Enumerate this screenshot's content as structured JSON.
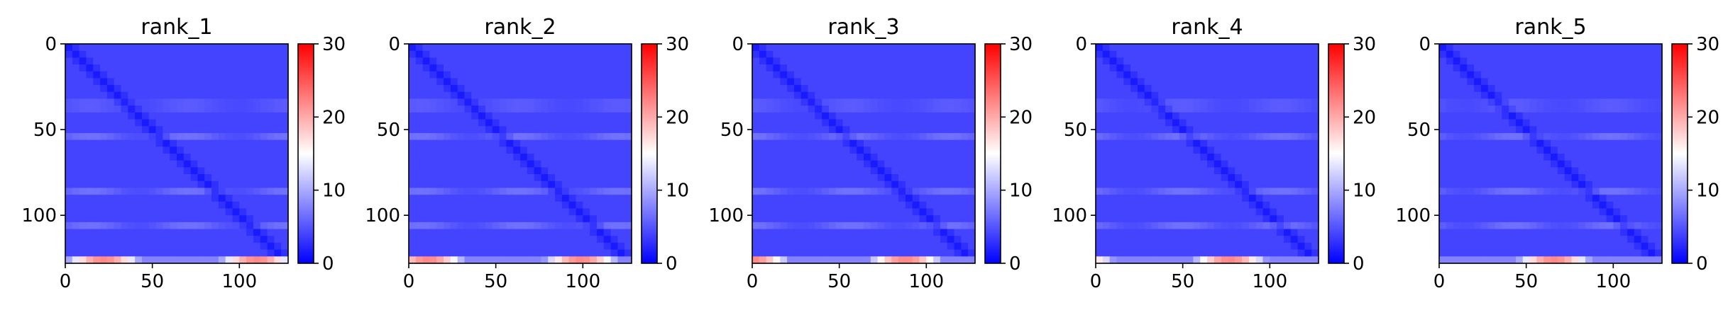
{
  "chart_data": {
    "type": "heatmap",
    "shared": {
      "matrix_size": 128,
      "xlim": [
        0,
        128
      ],
      "ylim": [
        0,
        128
      ],
      "x_ticks": [
        0,
        50,
        100
      ],
      "y_ticks": [
        0,
        50,
        100
      ],
      "colorbar": {
        "range": [
          0,
          30
        ],
        "ticks": [
          0,
          10,
          20,
          30
        ],
        "colormap": "bwr",
        "colors": {
          "low": "#0000ff",
          "mid": "#ffffff",
          "high": "#ff0000"
        }
      },
      "diagonal_band_value": 1.5,
      "background_value": 4,
      "lighter_rows": [
        36,
        55,
        87,
        107
      ],
      "lighter_row_value": 8,
      "edge_rows_value": 22
    },
    "panels": [
      {
        "title": "rank_1"
      },
      {
        "title": "rank_2"
      },
      {
        "title": "rank_3"
      },
      {
        "title": "rank_4"
      },
      {
        "title": "rank_5"
      }
    ]
  }
}
